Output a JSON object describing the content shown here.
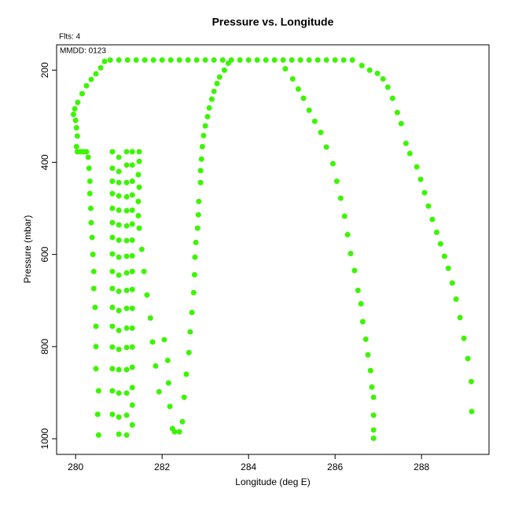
{
  "chart_data": {
    "type": "scatter",
    "title": "Pressure vs. Longitude",
    "annotations": [
      "Flts: 4",
      "MMDD: 0123"
    ],
    "x_label": "Longitude (deg E)",
    "y_label": "Pressure (mbar)",
    "xlim": [
      279.56,
      289.56
    ],
    "xticks": [
      280,
      282,
      284,
      286,
      288
    ],
    "ylim": [
      1034,
      145
    ],
    "yticks": [
      200,
      400,
      600,
      800,
      1000
    ],
    "color": "#3cf500",
    "x": [
      280.53,
      280.51,
      280.53,
      280.47,
      280.47,
      280.47,
      280.45,
      280.42,
      280.42,
      280.4,
      280.38,
      280.36,
      280.35,
      280.33,
      280.33,
      280.31,
      280.29,
      280.25,
      280.18,
      280.11,
      280.04,
      280.02,
      280.04,
      280.02,
      280,
      279.95,
      279.98,
      280.05,
      280.15,
      280.25,
      280.36,
      280.47,
      280.58,
      280.67,
      280.8,
      281,
      281.2,
      281.4,
      281.6,
      281.8,
      282,
      282.2,
      282.4,
      282.6,
      282.8,
      283,
      283.2,
      283.4,
      283.6,
      283.8,
      284,
      284.2,
      284.4,
      284.6,
      284.8,
      285,
      285.2,
      285.4,
      285.6,
      285.8,
      286,
      286.2,
      286.4,
      286.62,
      286.8,
      286.98,
      287.11,
      287.22,
      287.33,
      287.44,
      287.53,
      287.64,
      287.73,
      287.89,
      287.98,
      288.07,
      288.16,
      288.25,
      288.35,
      288.44,
      288.53,
      288.62,
      288.71,
      288.8,
      288.89,
      288.98,
      289.07,
      289.15,
      289.16,
      282.24,
      282.29,
      282.4,
      282.47,
      282.51,
      282.56,
      282.62,
      282.65,
      282.69,
      282.73,
      282.75,
      282.76,
      282.78,
      282.82,
      282.84,
      282.85,
      282.89,
      282.89,
      282.91,
      282.93,
      282.96,
      283,
      283.05,
      283.09,
      283.15,
      283.2,
      283.27,
      283.33,
      283.44,
      283.53,
      284.85,
      285.02,
      285.15,
      285.27,
      285.4,
      285.53,
      285.67,
      285.8,
      285.95,
      286.04,
      286.13,
      286.22,
      286.29,
      286.36,
      286.45,
      286.53,
      286.6,
      286.64,
      286.71,
      286.76,
      286.82,
      286.85,
      286.89,
      286.89,
      286.89,
      286.89,
      280.85,
      280.85,
      280.85,
      280.85,
      280.85,
      280.85,
      280.85,
      280.85,
      280.85,
      280.85,
      280.85,
      280.85,
      280.85,
      280.85,
      280.85,
      280.85,
      281,
      281,
      281,
      281,
      281,
      281,
      281,
      281,
      281,
      281,
      281,
      281,
      281,
      281,
      281,
      281,
      281,
      281.18,
      281.18,
      281.18,
      281.18,
      281.18,
      281.18,
      281.18,
      281.18,
      281.18,
      281.18,
      281.18,
      281.18,
      281.18,
      281.18,
      281.18,
      281.18,
      281.18,
      281.31,
      281.31,
      281.31,
      281.31,
      281.31,
      281.31,
      281.31,
      281.31,
      281.31,
      281.31,
      281.31,
      281.31,
      281.31,
      281.31,
      281.31,
      281.31,
      281.31,
      281.47,
      281.47,
      281.45,
      281.47,
      281.45,
      281.45,
      281.47,
      281.53,
      281.58,
      281.65,
      281.73,
      281.78,
      281.85,
      281.93,
      282.05,
      282.13,
      282.15,
      282.18
    ],
    "values": [
      992,
      947,
      896,
      848,
      800,
      756,
      715,
      674,
      637,
      600,
      563,
      531,
      500,
      468,
      441,
      413,
      389,
      377,
      377,
      377,
      377,
      366,
      343,
      325,
      309,
      296,
      284,
      270,
      251,
      234,
      220,
      208,
      195,
      181,
      178,
      178,
      178,
      178,
      178,
      178,
      178,
      178,
      178,
      178,
      178,
      178,
      178,
      178,
      178,
      178,
      178,
      178,
      178,
      178,
      178,
      178,
      178,
      178,
      178,
      178,
      178,
      178,
      178,
      190,
      200,
      207,
      219,
      237,
      261,
      292,
      316,
      359,
      381,
      410,
      437,
      466,
      495,
      524,
      552,
      577,
      604,
      630,
      662,
      697,
      737,
      782,
      826,
      876,
      941,
      978,
      985,
      985,
      963,
      910,
      860,
      813,
      768,
      726,
      683,
      644,
      606,
      574,
      543,
      514,
      485,
      444,
      418,
      393,
      366,
      342,
      321,
      301,
      282,
      263,
      246,
      229,
      215,
      200,
      185,
      197,
      219,
      241,
      261,
      287,
      311,
      335,
      367,
      403,
      441,
      478,
      517,
      557,
      598,
      635,
      678,
      707,
      746,
      784,
      818,
      852,
      888,
      910,
      949,
      981,
      999,
      377,
      413,
      441,
      468,
      500,
      531,
      563,
      599,
      637,
      674,
      715,
      756,
      801,
      848,
      896,
      947,
      389,
      420,
      444,
      473,
      504,
      536,
      569,
      606,
      645,
      680,
      722,
      765,
      806,
      850,
      901,
      953,
      990,
      377,
      406,
      444,
      475,
      505,
      538,
      570,
      604,
      640,
      678,
      717,
      760,
      802,
      850,
      901,
      949,
      992,
      377,
      406,
      441,
      471,
      504,
      534,
      569,
      603,
      637,
      676,
      717,
      760,
      801,
      845,
      889,
      927,
      970,
      377,
      398,
      427,
      454,
      485,
      516,
      543,
      589,
      637,
      688,
      738,
      790,
      842,
      898,
      785,
      830,
      879,
      930
    ]
  }
}
